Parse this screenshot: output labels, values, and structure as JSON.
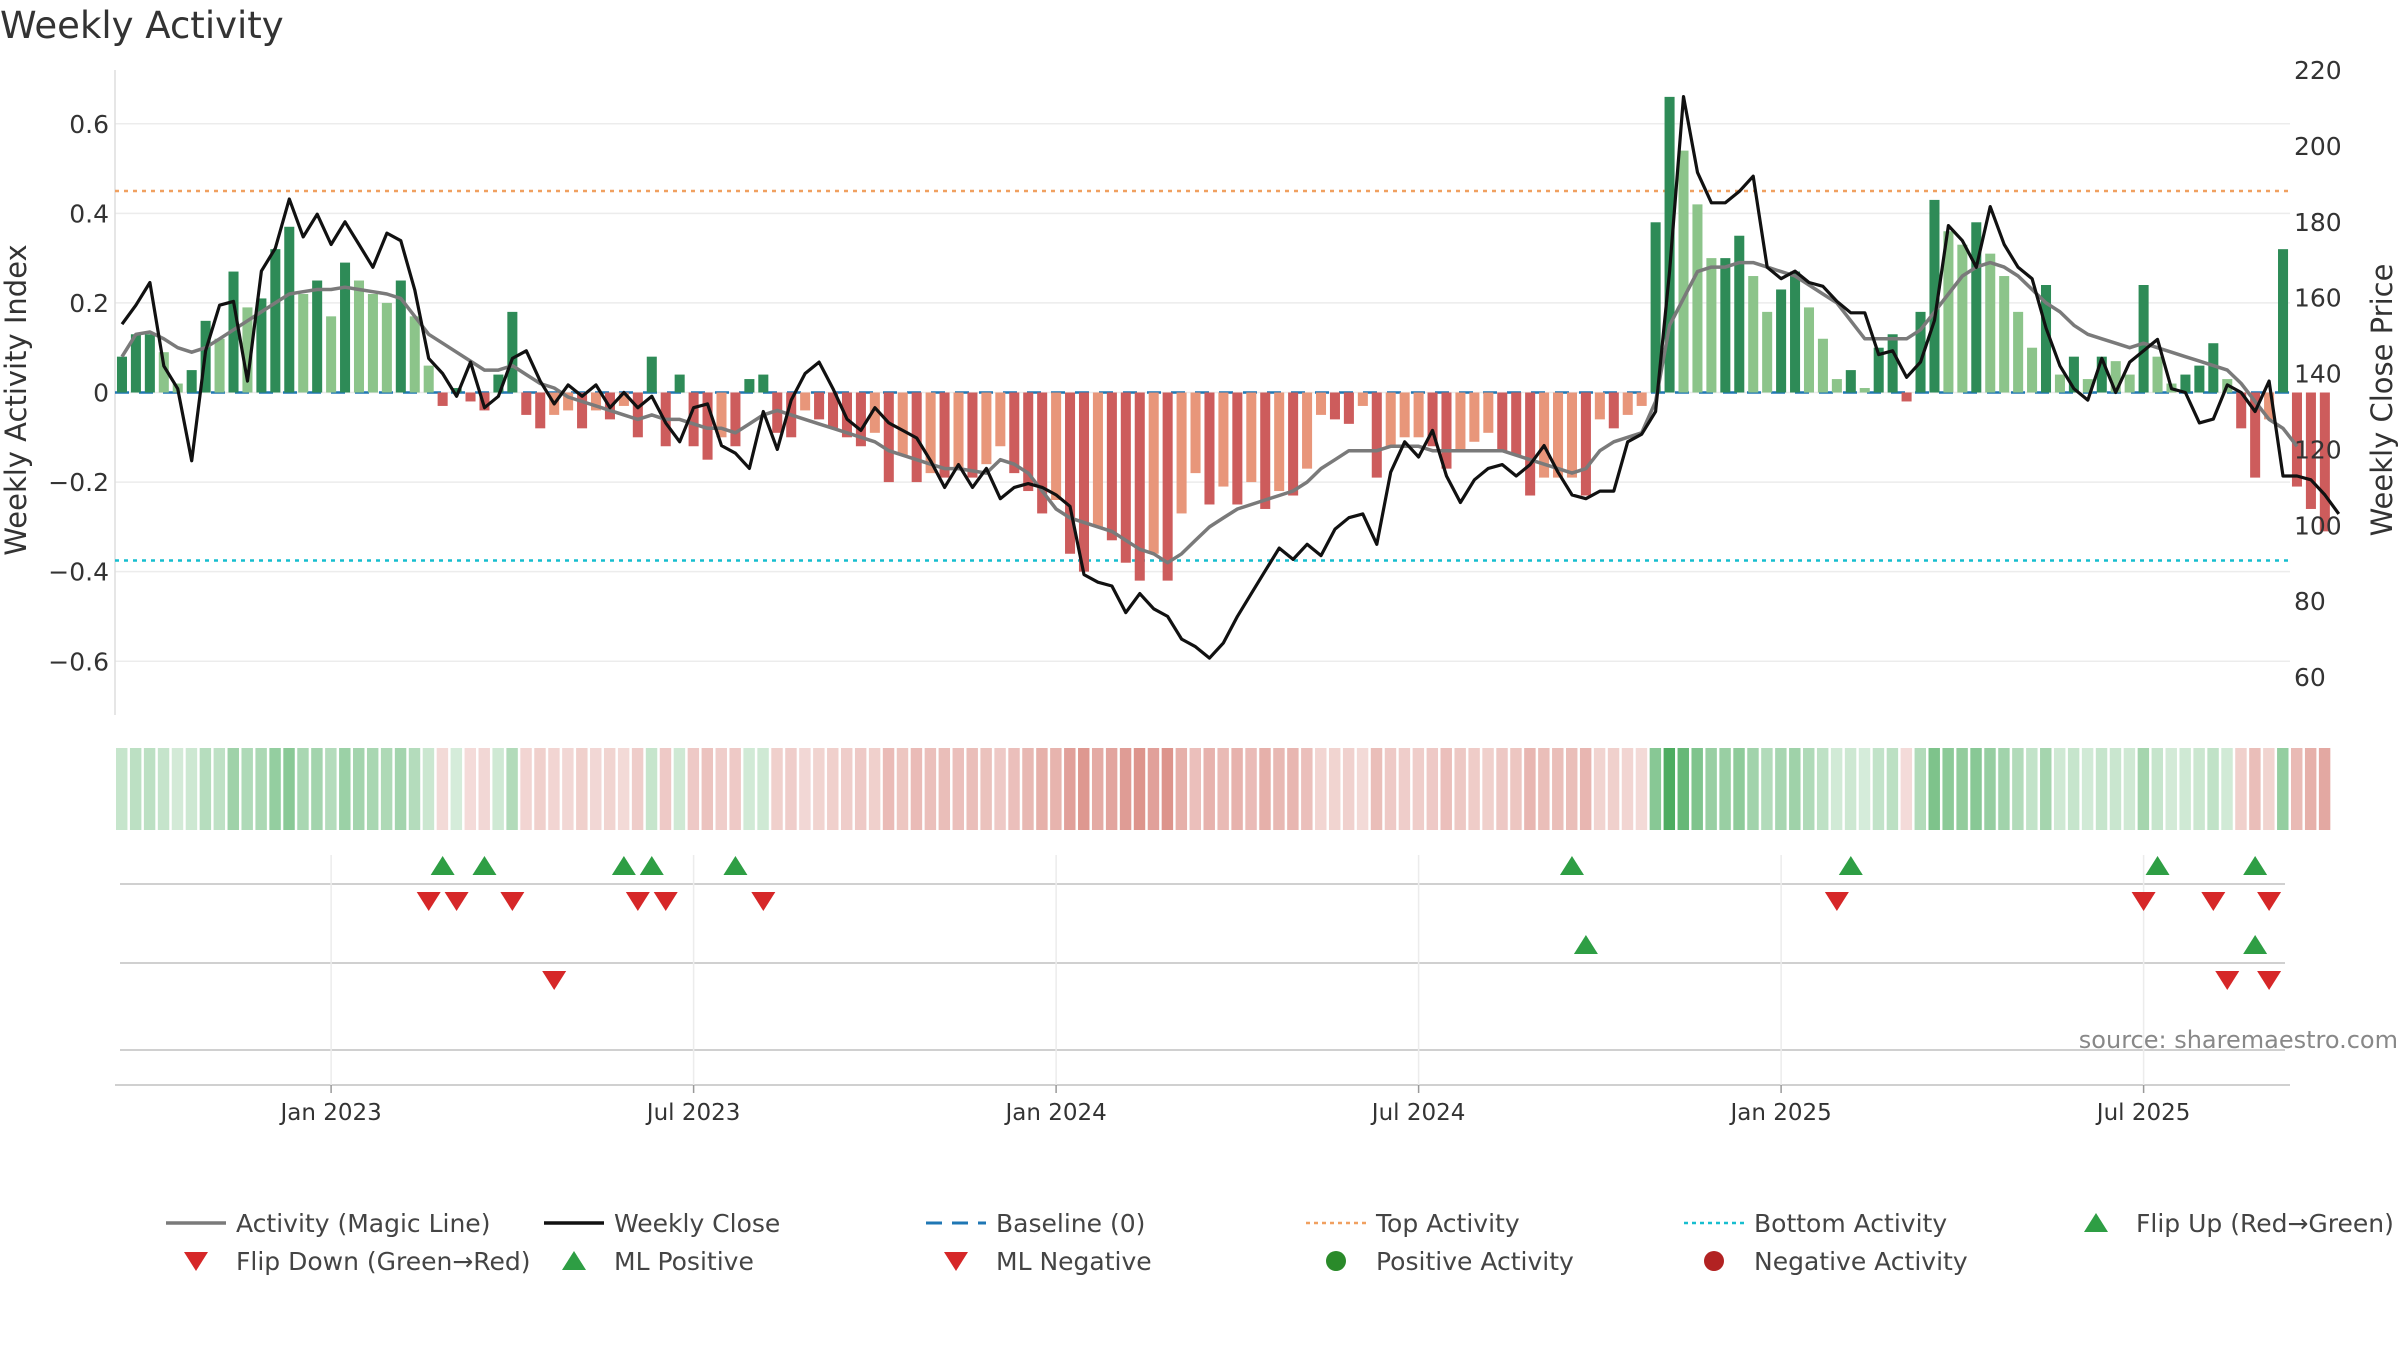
{
  "chart_data": {
    "type": "bar",
    "title": "Weekly Activity",
    "ylabel": "Weekly Activity Index",
    "y2label": "Weekly Close Price",
    "source": "source: sharemaestro.com",
    "ylim": [
      -0.72,
      0.72
    ],
    "y2lim": [
      50,
      220
    ],
    "yticks": [
      "0.6",
      "0.4",
      "0.2",
      "0",
      "−0.2",
      "−0.4",
      "−0.6"
    ],
    "yticks_values": [
      0.6,
      0.4,
      0.2,
      0,
      -0.2,
      -0.4,
      -0.6
    ],
    "y2ticks": [
      "220",
      "200",
      "180",
      "160",
      "140",
      "120",
      "100",
      "80",
      "60"
    ],
    "y2ticks_values": [
      220,
      200,
      180,
      160,
      140,
      120,
      100,
      80,
      60
    ],
    "xlabels": [
      "Jan 2023",
      "Jul 2023",
      "Jan 2024",
      "Jul 2024",
      "Jan 2025",
      "Jul 2025"
    ],
    "xlabel_week_index": [
      15,
      41,
      67,
      93,
      119,
      145
    ],
    "weeks": 156,
    "top_activity": 0.45,
    "bottom_activity": -0.375,
    "grid": true,
    "legend_position": "bottom",
    "activity": [
      0.08,
      0.13,
      0.13,
      0.09,
      0.02,
      0.05,
      0.16,
      0.12,
      0.27,
      0.19,
      0.21,
      0.32,
      0.37,
      0.22,
      0.25,
      0.17,
      0.29,
      0.25,
      0.22,
      0.2,
      0.25,
      0.17,
      0.06,
      -0.03,
      0.01,
      -0.02,
      -0.04,
      0.04,
      0.18,
      -0.05,
      -0.08,
      -0.05,
      -0.04,
      -0.08,
      -0.04,
      -0.06,
      -0.03,
      -0.1,
      0.08,
      -0.12,
      0.04,
      -0.12,
      -0.15,
      -0.1,
      -0.12,
      0.03,
      0.04,
      -0.09,
      -0.1,
      -0.04,
      -0.06,
      -0.08,
      -0.1,
      -0.12,
      -0.09,
      -0.2,
      -0.14,
      -0.2,
      -0.18,
      -0.19,
      -0.17,
      -0.19,
      -0.16,
      -0.12,
      -0.18,
      -0.22,
      -0.27,
      -0.24,
      -0.36,
      -0.4,
      -0.3,
      -0.33,
      -0.38,
      -0.42,
      -0.36,
      -0.42,
      -0.27,
      -0.18,
      -0.25,
      -0.21,
      -0.25,
      -0.2,
      -0.26,
      -0.22,
      -0.23,
      -0.17,
      -0.05,
      -0.06,
      -0.07,
      -0.03,
      -0.19,
      -0.12,
      -0.1,
      -0.1,
      -0.12,
      -0.17,
      -0.13,
      -0.11,
      -0.09,
      -0.13,
      -0.14,
      -0.23,
      -0.19,
      -0.19,
      -0.19,
      -0.23,
      -0.06,
      -0.08,
      -0.05,
      -0.03,
      0.38,
      0.66,
      0.54,
      0.42,
      0.3,
      0.3,
      0.35,
      0.26,
      0.18,
      0.23,
      0.27,
      0.19,
      0.12,
      0.03,
      0.05,
      0.01,
      0.1,
      0.13,
      -0.02,
      0.18,
      0.43,
      0.36,
      0.33,
      0.38,
      0.31,
      0.26,
      0.18,
      0.1,
      0.24,
      0.04,
      0.08,
      0.03,
      0.08,
      0.07,
      0.04,
      0.24,
      0.08,
      0.02,
      0.04,
      0.06,
      0.11,
      0.03,
      -0.08,
      -0.19,
      -0.06,
      0.32,
      -0.21,
      -0.26,
      -0.31
    ],
    "magic_line": [
      0.08,
      0.13,
      0.135,
      0.12,
      0.1,
      0.09,
      0.1,
      0.12,
      0.14,
      0.16,
      0.18,
      0.2,
      0.22,
      0.225,
      0.23,
      0.23,
      0.235,
      0.23,
      0.225,
      0.22,
      0.21,
      0.17,
      0.13,
      0.11,
      0.09,
      0.07,
      0.05,
      0.05,
      0.06,
      0.04,
      0.02,
      0.01,
      -0.01,
      -0.02,
      -0.03,
      -0.04,
      -0.05,
      -0.06,
      -0.05,
      -0.06,
      -0.06,
      -0.07,
      -0.08,
      -0.08,
      -0.09,
      -0.07,
      -0.05,
      -0.04,
      -0.05,
      -0.06,
      -0.07,
      -0.08,
      -0.09,
      -0.1,
      -0.11,
      -0.13,
      -0.14,
      -0.15,
      -0.16,
      -0.17,
      -0.17,
      -0.175,
      -0.18,
      -0.15,
      -0.16,
      -0.18,
      -0.22,
      -0.26,
      -0.28,
      -0.29,
      -0.3,
      -0.31,
      -0.33,
      -0.35,
      -0.36,
      -0.38,
      -0.36,
      -0.33,
      -0.3,
      -0.28,
      -0.26,
      -0.25,
      -0.24,
      -0.23,
      -0.22,
      -0.2,
      -0.17,
      -0.15,
      -0.13,
      -0.13,
      -0.13,
      -0.12,
      -0.12,
      -0.12,
      -0.13,
      -0.13,
      -0.13,
      -0.13,
      -0.13,
      -0.13,
      -0.14,
      -0.15,
      -0.16,
      -0.17,
      -0.18,
      -0.17,
      -0.13,
      -0.11,
      -0.1,
      -0.09,
      -0.02,
      0.15,
      0.21,
      0.27,
      0.28,
      0.28,
      0.29,
      0.29,
      0.28,
      0.27,
      0.26,
      0.24,
      0.22,
      0.2,
      0.16,
      0.12,
      0.12,
      0.12,
      0.12,
      0.14,
      0.18,
      0.22,
      0.26,
      0.28,
      0.29,
      0.28,
      0.26,
      0.23,
      0.2,
      0.18,
      0.15,
      0.13,
      0.12,
      0.11,
      0.1,
      0.11,
      0.1,
      0.09,
      0.08,
      0.07,
      0.06,
      0.05,
      0.02,
      -0.02,
      -0.06,
      -0.08,
      -0.12
    ],
    "weekly_close": [
      153,
      158,
      164,
      142,
      136,
      117,
      146,
      158,
      159,
      138,
      167,
      173,
      186,
      176,
      182,
      174,
      180,
      174,
      168,
      177,
      175,
      162,
      144,
      140,
      134,
      143,
      131,
      134,
      144,
      146,
      138,
      132,
      137,
      134,
      137,
      131,
      135,
      131,
      134,
      127,
      122,
      131,
      132,
      121,
      119,
      115,
      130,
      120,
      133,
      140,
      143,
      136,
      128,
      125,
      131,
      127,
      125,
      123,
      117,
      110,
      116,
      110,
      115,
      107,
      110,
      111,
      110,
      108,
      105,
      87,
      85,
      84,
      77,
      82,
      78,
      76,
      70,
      68,
      65,
      69,
      76,
      82,
      88,
      94,
      91,
      95,
      92,
      99,
      102,
      103,
      95,
      114,
      122,
      118,
      125,
      113,
      106,
      112,
      115,
      116,
      113,
      116,
      121,
      114,
      108,
      107,
      109,
      109,
      122,
      124,
      130,
      167,
      213,
      193,
      185,
      185,
      188,
      192,
      168,
      165,
      167,
      164,
      163,
      159,
      156,
      156,
      145,
      146,
      139,
      143,
      154,
      179,
      175,
      168,
      184,
      174,
      168,
      165,
      152,
      142,
      136,
      133,
      144,
      135,
      143,
      146,
      149,
      136,
      135,
      127,
      128,
      137,
      135,
      130,
      138,
      113,
      113,
      112,
      108,
      103
    ],
    "bar_colors": {
      "strong_positive": "#2e8b57",
      "weak_positive": "#8cc48a",
      "strong_negative": "#cd5c5c",
      "weak_negative": "#e8967a"
    },
    "colors": {
      "magic_line": "#7a7a7a",
      "weekly_close": "#111111",
      "baseline": "#1f77b4",
      "top_activity": "#f0a060",
      "bottom_activity": "#17becf",
      "flip_up": "#2e9e44",
      "flip_down": "#d62728",
      "positive_activity": "#2a8a2a",
      "negative_activity": "#b22222"
    },
    "flip_up_weeks": [
      23,
      26,
      36,
      38,
      44,
      104,
      124,
      146,
      153
    ],
    "flip_down_weeks": [
      22,
      24,
      28,
      37,
      39,
      46,
      123,
      145,
      150,
      154
    ],
    "ml_positive_weeks": [
      105,
      153
    ],
    "ml_negative_weeks": [
      31,
      151,
      154
    ],
    "legend": [
      {
        "label": "Activity (Magic Line)",
        "symbol": "line-gray"
      },
      {
        "label": "Weekly Close",
        "symbol": "line-black"
      },
      {
        "label": "Baseline (0)",
        "symbol": "dash-blue"
      },
      {
        "label": "Top Activity",
        "symbol": "dot-orange"
      },
      {
        "label": "Bottom Activity",
        "symbol": "dot-cyan"
      },
      {
        "label": "Flip Up (Red→Green)",
        "symbol": "tri-up-green"
      },
      {
        "label": "Flip Down (Green→Red)",
        "symbol": "tri-down-red"
      },
      {
        "label": "ML Positive",
        "symbol": "tri-up-green"
      },
      {
        "label": "ML Negative",
        "symbol": "tri-down-red"
      },
      {
        "label": "Positive Activity",
        "symbol": "circle-green"
      },
      {
        "label": "Negative Activity",
        "symbol": "circle-red"
      }
    ]
  }
}
